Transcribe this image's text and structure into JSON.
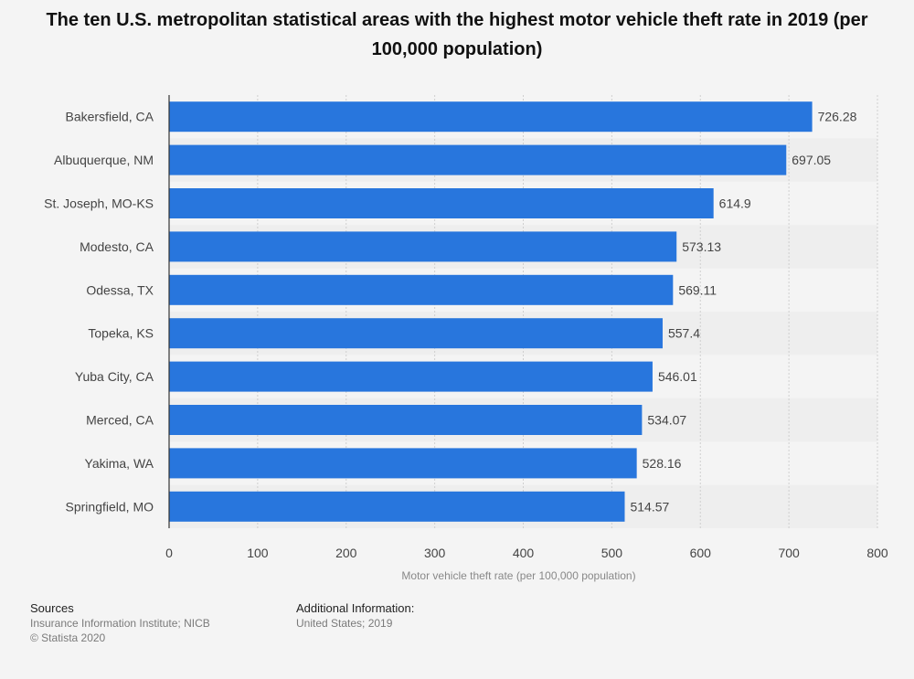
{
  "title": "The ten U.S. metropolitan statistical areas with the highest motor vehicle theft rate in 2019 (per 100,000 population)",
  "chart_data": {
    "type": "bar",
    "orientation": "horizontal",
    "categories": [
      "Bakersfield, CA",
      "Albuquerque, NM",
      "St. Joseph, MO-KS",
      "Modesto, CA",
      "Odessa, TX",
      "Topeka, KS",
      "Yuba City, CA",
      "Merced, CA",
      "Yakima, WA",
      "Springfield, MO"
    ],
    "values": [
      726.28,
      697.05,
      614.9,
      573.13,
      569.11,
      557.4,
      546.01,
      534.07,
      528.16,
      514.57
    ],
    "value_labels": [
      "726.28",
      "697.05",
      "614.9",
      "573.13",
      "569.11",
      "557.4",
      "546.01",
      "534.07",
      "528.16",
      "514.57"
    ],
    "xlabel": "Motor vehicle theft rate (per 100,000 population)",
    "ylabel": "",
    "xlim": [
      0,
      800
    ],
    "xticks": [
      0,
      100,
      200,
      300,
      400,
      500,
      600,
      700,
      800
    ],
    "grid": true,
    "bar_color": "#2876dd"
  },
  "footer": {
    "sources_heading": "Sources",
    "sources_line1": "Insurance Information Institute; NICB",
    "sources_line2": "© Statista 2020",
    "additional_heading": "Additional Information:",
    "additional_line1": "United States; 2019"
  }
}
